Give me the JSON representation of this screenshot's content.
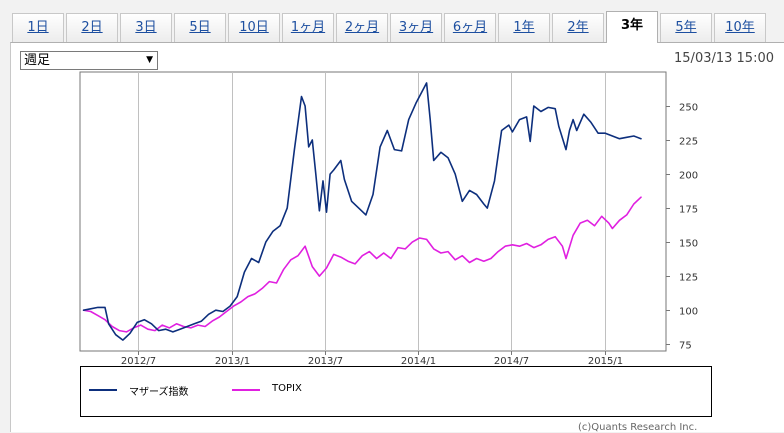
{
  "tabs": [
    {
      "label": "1日",
      "active": false
    },
    {
      "label": "2日",
      "active": false
    },
    {
      "label": "3日",
      "active": false
    },
    {
      "label": "5日",
      "active": false
    },
    {
      "label": "10日",
      "active": false
    },
    {
      "label": "1ヶ月",
      "active": false
    },
    {
      "label": "2ヶ月",
      "active": false
    },
    {
      "label": "3ヶ月",
      "active": false
    },
    {
      "label": "6ヶ月",
      "active": false
    },
    {
      "label": "1年",
      "active": false
    },
    {
      "label": "2年",
      "active": false
    },
    {
      "label": "3年",
      "active": true
    },
    {
      "label": "5年",
      "active": false
    },
    {
      "label": "10年",
      "active": false
    }
  ],
  "controls": {
    "period_select": "週足",
    "datetime": "15/03/13 15:00"
  },
  "credit": "(c)Quants Research Inc.",
  "colors": {
    "mothers": "#0d2f7d",
    "topix": "#e020e0",
    "grid": "#c0c0c0",
    "link": "#1d4fa0"
  },
  "chart_data": {
    "type": "line",
    "title": "",
    "xlabel": "",
    "ylabel": "",
    "ylim": [
      70,
      275
    ],
    "yticks": [
      75,
      100,
      125,
      150,
      175,
      200,
      225,
      250
    ],
    "xlim": [
      "2012-03-09",
      "2015-05-01"
    ],
    "xticks": [
      {
        "date": "2012-07-01",
        "label": "2012/7"
      },
      {
        "date": "2013-01-01",
        "label": "2013/1"
      },
      {
        "date": "2013-07-01",
        "label": "2013/7"
      },
      {
        "date": "2014-01-01",
        "label": "2014/1"
      },
      {
        "date": "2014-07-01",
        "label": "2014/7"
      },
      {
        "date": "2015-01-01",
        "label": "2015/1"
      }
    ],
    "grid": true,
    "legend": "bottom",
    "series": [
      {
        "name": "マザーズ指数",
        "color": "#0d2f7d",
        "points": [
          [
            "2012-03-16",
            100
          ],
          [
            "2012-03-30",
            101
          ],
          [
            "2012-04-13",
            102
          ],
          [
            "2012-04-27",
            102
          ],
          [
            "2012-05-04",
            90
          ],
          [
            "2012-05-18",
            82
          ],
          [
            "2012-06-01",
            78
          ],
          [
            "2012-06-15",
            83
          ],
          [
            "2012-06-29",
            91
          ],
          [
            "2012-07-13",
            93
          ],
          [
            "2012-07-27",
            90
          ],
          [
            "2012-08-10",
            85
          ],
          [
            "2012-08-24",
            86
          ],
          [
            "2012-09-07",
            84
          ],
          [
            "2012-09-21",
            86
          ],
          [
            "2012-10-05",
            88
          ],
          [
            "2012-10-19",
            90
          ],
          [
            "2012-11-02",
            92
          ],
          [
            "2012-11-16",
            97
          ],
          [
            "2012-11-30",
            100
          ],
          [
            "2012-12-14",
            99
          ],
          [
            "2012-12-28",
            103
          ],
          [
            "2013-01-11",
            110
          ],
          [
            "2013-01-25",
            128
          ],
          [
            "2013-02-08",
            138
          ],
          [
            "2013-02-22",
            135
          ],
          [
            "2013-03-08",
            150
          ],
          [
            "2013-03-22",
            158
          ],
          [
            "2013-04-05",
            162
          ],
          [
            "2013-04-19",
            175
          ],
          [
            "2013-05-03",
            218
          ],
          [
            "2013-05-17",
            257
          ],
          [
            "2013-05-24",
            250
          ],
          [
            "2013-05-31",
            220
          ],
          [
            "2013-06-07",
            225
          ],
          [
            "2013-06-14",
            200
          ],
          [
            "2013-06-21",
            173
          ],
          [
            "2013-06-28",
            195
          ],
          [
            "2013-07-05",
            172
          ],
          [
            "2013-07-12",
            200
          ],
          [
            "2013-07-19",
            203
          ],
          [
            "2013-08-02",
            210
          ],
          [
            "2013-08-09",
            196
          ],
          [
            "2013-08-23",
            180
          ],
          [
            "2013-09-06",
            175
          ],
          [
            "2013-09-20",
            170
          ],
          [
            "2013-10-04",
            185
          ],
          [
            "2013-10-18",
            220
          ],
          [
            "2013-11-01",
            232
          ],
          [
            "2013-11-15",
            218
          ],
          [
            "2013-11-29",
            217
          ],
          [
            "2013-12-13",
            240
          ],
          [
            "2013-12-27",
            252
          ],
          [
            "2014-01-10",
            262
          ],
          [
            "2014-01-17",
            267
          ],
          [
            "2014-01-24",
            240
          ],
          [
            "2014-01-31",
            210
          ],
          [
            "2014-02-14",
            216
          ],
          [
            "2014-02-28",
            212
          ],
          [
            "2014-03-14",
            200
          ],
          [
            "2014-03-28",
            180
          ],
          [
            "2014-04-11",
            188
          ],
          [
            "2014-04-25",
            185
          ],
          [
            "2014-05-09",
            178
          ],
          [
            "2014-05-16",
            175
          ],
          [
            "2014-05-30",
            195
          ],
          [
            "2014-06-13",
            232
          ],
          [
            "2014-06-27",
            236
          ],
          [
            "2014-07-04",
            231
          ],
          [
            "2014-07-18",
            240
          ],
          [
            "2014-08-01",
            242
          ],
          [
            "2014-08-08",
            224
          ],
          [
            "2014-08-15",
            250
          ],
          [
            "2014-08-29",
            246
          ],
          [
            "2014-09-12",
            249
          ],
          [
            "2014-09-26",
            248
          ],
          [
            "2014-10-03",
            235
          ],
          [
            "2014-10-17",
            218
          ],
          [
            "2014-10-24",
            232
          ],
          [
            "2014-10-31",
            240
          ],
          [
            "2014-11-07",
            232
          ],
          [
            "2014-11-21",
            244
          ],
          [
            "2014-12-05",
            238
          ],
          [
            "2014-12-19",
            230
          ],
          [
            "2015-01-02",
            230
          ],
          [
            "2015-01-16",
            228
          ],
          [
            "2015-01-30",
            226
          ],
          [
            "2015-02-13",
            227
          ],
          [
            "2015-02-27",
            228
          ],
          [
            "2015-03-13",
            226
          ]
        ]
      },
      {
        "name": "TOPIX",
        "color": "#e020e0",
        "points": [
          [
            "2012-03-16",
            100
          ],
          [
            "2012-03-30",
            99
          ],
          [
            "2012-04-13",
            96
          ],
          [
            "2012-04-27",
            93
          ],
          [
            "2012-05-11",
            88
          ],
          [
            "2012-05-25",
            85
          ],
          [
            "2012-06-08",
            84
          ],
          [
            "2012-06-22",
            87
          ],
          [
            "2012-07-06",
            89
          ],
          [
            "2012-07-20",
            86
          ],
          [
            "2012-08-03",
            85
          ],
          [
            "2012-08-17",
            89
          ],
          [
            "2012-08-31",
            87
          ],
          [
            "2012-09-14",
            90
          ],
          [
            "2012-09-28",
            88
          ],
          [
            "2012-10-12",
            87
          ],
          [
            "2012-10-26",
            89
          ],
          [
            "2012-11-09",
            88
          ],
          [
            "2012-11-23",
            92
          ],
          [
            "2012-12-07",
            95
          ],
          [
            "2012-12-21",
            99
          ],
          [
            "2013-01-04",
            103
          ],
          [
            "2013-01-18",
            106
          ],
          [
            "2013-02-01",
            110
          ],
          [
            "2013-02-15",
            112
          ],
          [
            "2013-03-01",
            116
          ],
          [
            "2013-03-15",
            121
          ],
          [
            "2013-03-29",
            120
          ],
          [
            "2013-04-12",
            130
          ],
          [
            "2013-04-26",
            137
          ],
          [
            "2013-05-10",
            140
          ],
          [
            "2013-05-24",
            147
          ],
          [
            "2013-06-07",
            132
          ],
          [
            "2013-06-21",
            125
          ],
          [
            "2013-07-05",
            131
          ],
          [
            "2013-07-19",
            141
          ],
          [
            "2013-08-02",
            139
          ],
          [
            "2013-08-16",
            136
          ],
          [
            "2013-08-30",
            134
          ],
          [
            "2013-09-13",
            140
          ],
          [
            "2013-09-27",
            143
          ],
          [
            "2013-10-11",
            138
          ],
          [
            "2013-10-25",
            142
          ],
          [
            "2013-11-08",
            138
          ],
          [
            "2013-11-22",
            146
          ],
          [
            "2013-12-06",
            145
          ],
          [
            "2013-12-20",
            150
          ],
          [
            "2014-01-03",
            153
          ],
          [
            "2014-01-17",
            152
          ],
          [
            "2014-01-31",
            145
          ],
          [
            "2014-02-14",
            142
          ],
          [
            "2014-02-28",
            143
          ],
          [
            "2014-03-14",
            137
          ],
          [
            "2014-03-28",
            140
          ],
          [
            "2014-04-11",
            135
          ],
          [
            "2014-04-25",
            138
          ],
          [
            "2014-05-09",
            136
          ],
          [
            "2014-05-23",
            138
          ],
          [
            "2014-06-06",
            143
          ],
          [
            "2014-06-20",
            147
          ],
          [
            "2014-07-04",
            148
          ],
          [
            "2014-07-18",
            147
          ],
          [
            "2014-08-01",
            149
          ],
          [
            "2014-08-15",
            146
          ],
          [
            "2014-08-29",
            148
          ],
          [
            "2014-09-12",
            152
          ],
          [
            "2014-09-26",
            154
          ],
          [
            "2014-10-10",
            147
          ],
          [
            "2014-10-17",
            138
          ],
          [
            "2014-10-31",
            155
          ],
          [
            "2014-11-14",
            164
          ],
          [
            "2014-11-28",
            166
          ],
          [
            "2014-12-12",
            162
          ],
          [
            "2014-12-26",
            169
          ],
          [
            "2015-01-09",
            164
          ],
          [
            "2015-01-16",
            160
          ],
          [
            "2015-01-30",
            166
          ],
          [
            "2015-02-13",
            170
          ],
          [
            "2015-02-27",
            178
          ],
          [
            "2015-03-13",
            183
          ]
        ]
      }
    ]
  }
}
